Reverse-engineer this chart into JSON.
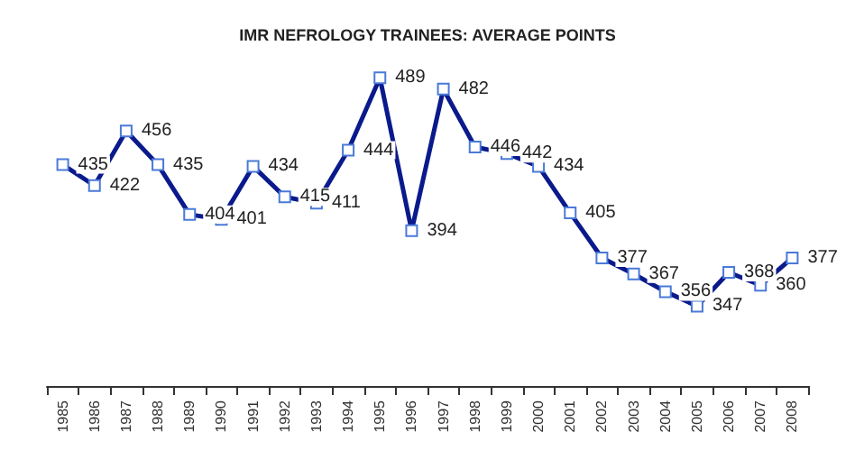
{
  "chart_data": {
    "type": "line",
    "title": "IMR NEFROLOGY TRAINEES: AVERAGE POINTS",
    "categories": [
      "1985",
      "1986",
      "1987",
      "1988",
      "1989",
      "1990",
      "1991",
      "1992",
      "1993",
      "1994",
      "1995",
      "1996",
      "1997",
      "1998",
      "1999",
      "2000",
      "2001",
      "2002",
      "2003",
      "2004",
      "2005",
      "2006",
      "2007",
      "2008"
    ],
    "series": [
      {
        "color": "#0a1a8c",
        "values": [
          435,
          422,
          456,
          435,
          404,
          401,
          434,
          415,
          411,
          444,
          489,
          394,
          482,
          446,
          442,
          434,
          405,
          377,
          367,
          356,
          347,
          368,
          360,
          377
        ]
      }
    ],
    "tick_labels": "x",
    "data_labels": true,
    "marker": "square",
    "line_style": "solid",
    "grid": false
  }
}
